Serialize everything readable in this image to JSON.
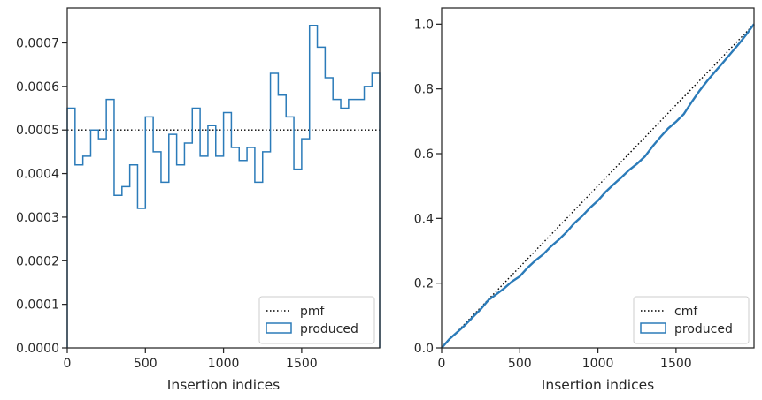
{
  "colors": {
    "produced": "#2b7bb9",
    "reference": "#000000",
    "axes": "#262626"
  },
  "chart_data": [
    {
      "type": "histogram-step",
      "title": "",
      "xlabel": "Insertion indices",
      "ylabel": "",
      "xlim": [
        0,
        1999
      ],
      "ylim": [
        0,
        0.00078
      ],
      "x_ticks": [
        0,
        500,
        1000,
        1500
      ],
      "y_ticks": [
        0.0,
        0.0001,
        0.0002,
        0.0003,
        0.0004,
        0.0005,
        0.0006,
        0.0007
      ],
      "y_tick_labels": [
        "0.0000",
        "0.0001",
        "0.0002",
        "0.0003",
        "0.0004",
        "0.0005",
        "0.0006",
        "0.0007"
      ],
      "bin_width": 50,
      "series": [
        {
          "name": "pmf",
          "style": "dotted",
          "x": [
            0,
            1999
          ],
          "values": [
            0.0005,
            0.0005
          ]
        },
        {
          "name": "produced",
          "style": "step",
          "bin_edges": [
            0,
            50,
            100,
            150,
            200,
            250,
            300,
            350,
            400,
            450,
            500,
            550,
            600,
            650,
            700,
            750,
            800,
            850,
            900,
            950,
            1000,
            1050,
            1100,
            1150,
            1200,
            1250,
            1300,
            1350,
            1400,
            1450,
            1500,
            1550,
            1600,
            1650,
            1700,
            1750,
            1800,
            1850,
            1900,
            1950,
            1999
          ],
          "values": [
            0.00055,
            0.00042,
            0.00044,
            0.0005,
            0.00048,
            0.00057,
            0.00035,
            0.00037,
            0.00042,
            0.00032,
            0.00053,
            0.00045,
            0.00038,
            0.00049,
            0.00042,
            0.00047,
            0.00055,
            0.00044,
            0.00051,
            0.00044,
            0.00054,
            0.00046,
            0.00043,
            0.00046,
            0.00038,
            0.00045,
            0.00063,
            0.00058,
            0.00053,
            0.00041,
            0.00048,
            0.00074,
            0.00069,
            0.00062,
            0.00057,
            0.00055,
            0.00057,
            0.00057,
            0.0006,
            0.00063
          ]
        }
      ],
      "legend": {
        "position": "bottom-right",
        "entries": [
          "pmf",
          "produced"
        ]
      }
    },
    {
      "type": "line",
      "title": "",
      "xlabel": "Insertion indices",
      "ylabel": "",
      "xlim": [
        0,
        1999
      ],
      "ylim": [
        0,
        1.05
      ],
      "x_ticks": [
        0,
        500,
        1000,
        1500
      ],
      "y_ticks": [
        0.0,
        0.2,
        0.4,
        0.6,
        0.8,
        1.0
      ],
      "y_tick_labels": [
        "0.0",
        "0.2",
        "0.4",
        "0.6",
        "0.8",
        "1.0"
      ],
      "series": [
        {
          "name": "cmf",
          "style": "dotted",
          "x": [
            0,
            1999
          ],
          "values": [
            0,
            1.0
          ]
        },
        {
          "name": "produced",
          "style": "solid",
          "x": [
            0,
            50,
            100,
            150,
            200,
            250,
            300,
            350,
            400,
            450,
            500,
            550,
            600,
            650,
            700,
            750,
            800,
            850,
            900,
            950,
            1000,
            1050,
            1100,
            1150,
            1200,
            1250,
            1300,
            1350,
            1400,
            1450,
            1500,
            1550,
            1600,
            1650,
            1700,
            1750,
            1800,
            1850,
            1900,
            1950,
            1999
          ],
          "values": [
            0,
            0.0275,
            0.0485,
            0.0705,
            0.0955,
            0.1195,
            0.148,
            0.1655,
            0.184,
            0.205,
            0.221,
            0.2475,
            0.27,
            0.289,
            0.3135,
            0.3345,
            0.358,
            0.3855,
            0.4075,
            0.433,
            0.455,
            0.482,
            0.505,
            0.5265,
            0.5495,
            0.5685,
            0.591,
            0.6225,
            0.6515,
            0.678,
            0.6985,
            0.7225,
            0.7595,
            0.794,
            0.825,
            0.8535,
            0.881,
            0.9095,
            0.938,
            0.968,
            1.0
          ]
        }
      ],
      "legend": {
        "position": "bottom-right",
        "entries": [
          "cmf",
          "produced"
        ]
      }
    }
  ]
}
